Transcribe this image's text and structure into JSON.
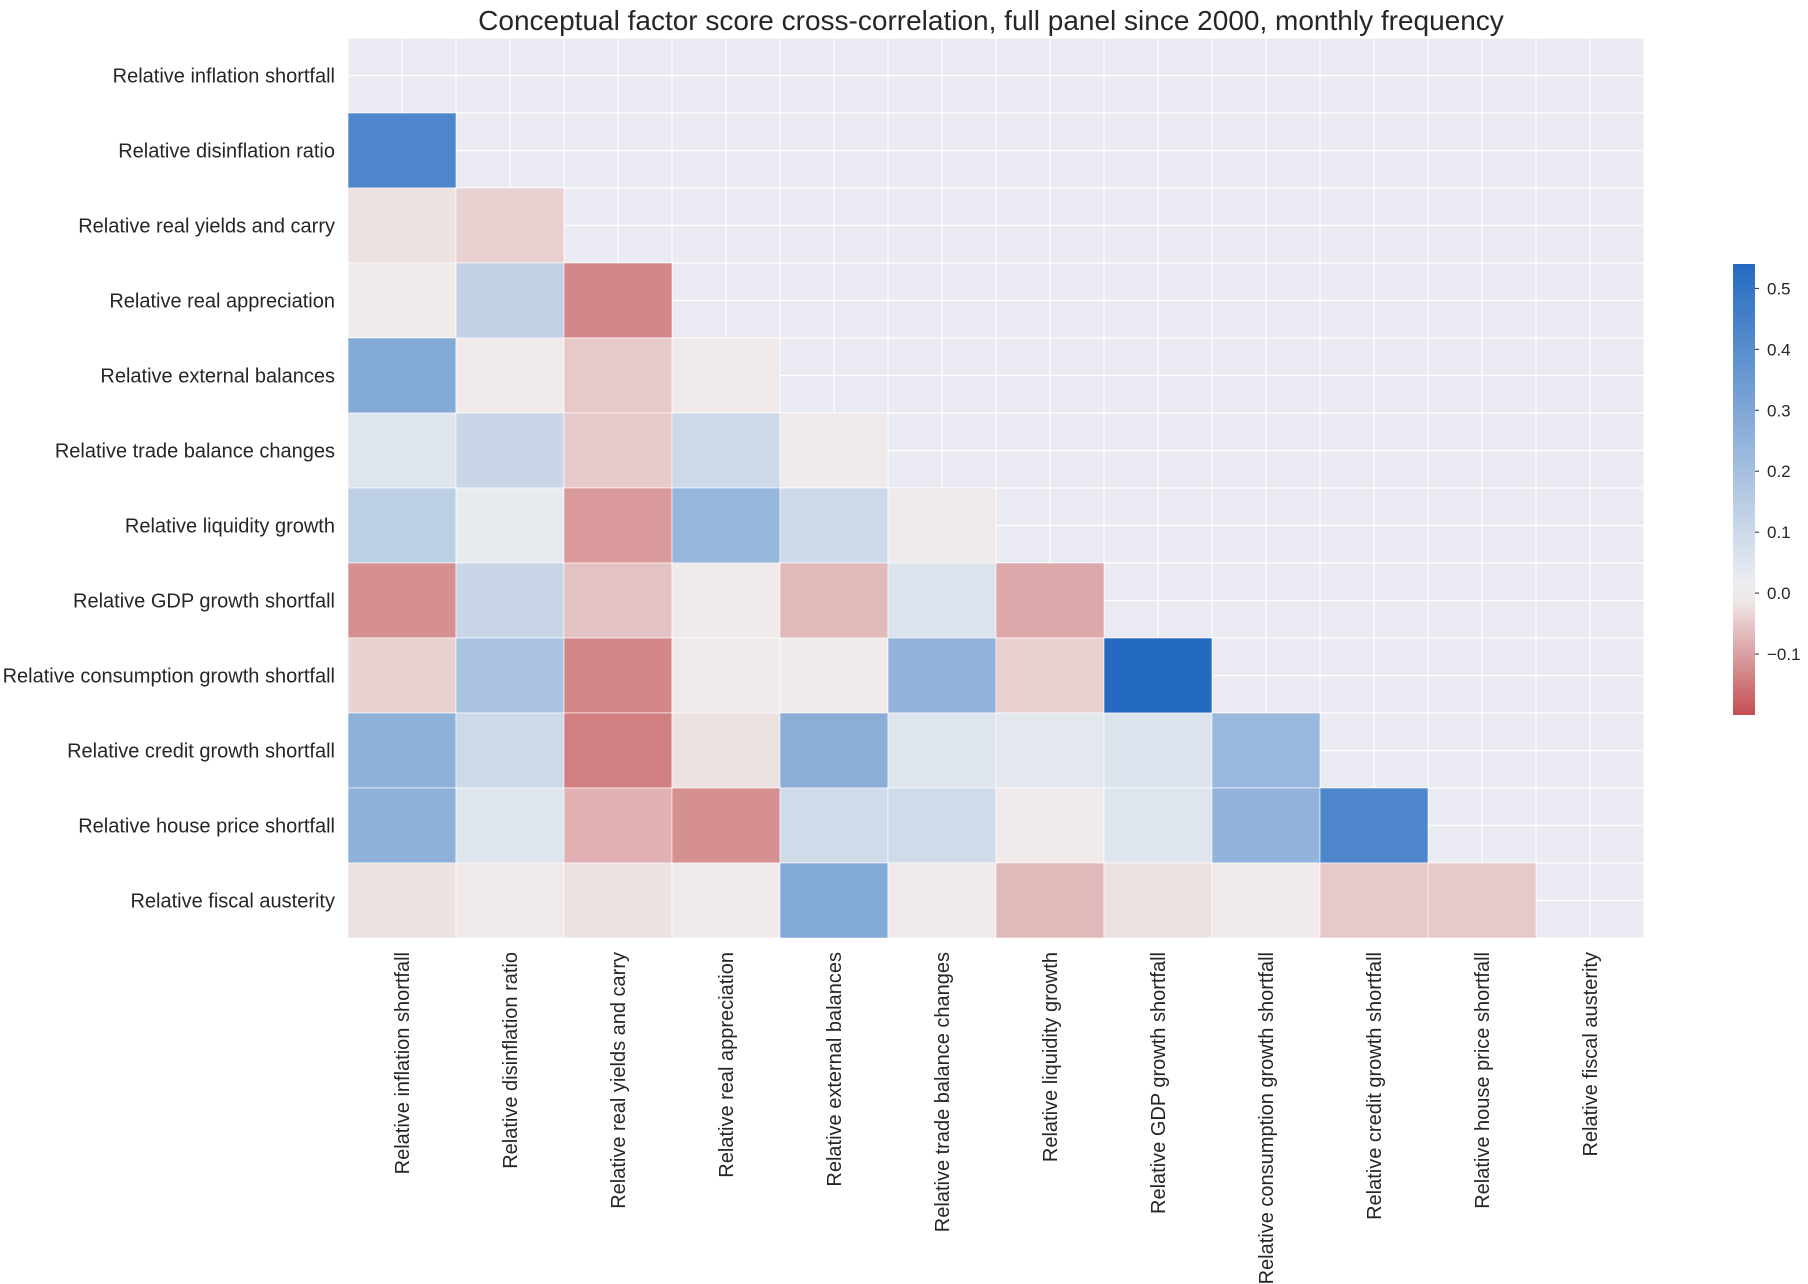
{
  "chart_data": {
    "type": "heatmap",
    "title": "Conceptual factor score cross-correlation, full panel since 2000, monthly frequency",
    "xlabel": "",
    "ylabel": "",
    "mask": "upper triangle including diagonal",
    "grid": true,
    "colormap": {
      "negative": "#c44e52",
      "zero": "#f2f2f2",
      "positive": "#236ac0"
    },
    "colorbar": {
      "range": [
        -0.2,
        0.54
      ],
      "ticks": [
        -0.1,
        0.0,
        0.1,
        0.2,
        0.3,
        0.4,
        0.5
      ],
      "tick_labels": [
        "−0.1",
        "0.0",
        "0.1",
        "0.2",
        "0.3",
        "0.4",
        "0.5"
      ],
      "placement": "right"
    },
    "labels": [
      "Relative inflation shortfall",
      "Relative disinflation ratio",
      "Relative real yields and carry",
      "Relative real appreciation",
      "Relative external balances",
      "Relative trade balance changes",
      "Relative liquidity growth",
      "Relative GDP growth shortfall",
      "Relative consumption growth shortfall",
      "Relative credit growth shortfall",
      "Relative house price shortfall",
      "Relative fiscal austerity"
    ],
    "lower_triangle": [
      [],
      [
        0.43
      ],
      [
        -0.02,
        -0.04
      ],
      [
        -0.01,
        0.13,
        -0.13
      ],
      [
        0.29,
        -0.01,
        -0.05,
        -0.01
      ],
      [
        0.05,
        0.11,
        -0.05,
        0.1,
        -0.01
      ],
      [
        0.14,
        0.03,
        -0.11,
        0.24,
        0.1,
        -0.01
      ],
      [
        -0.12,
        0.11,
        -0.06,
        -0.01,
        -0.07,
        0.06,
        -0.09
      ],
      [
        -0.04,
        0.19,
        -0.13,
        -0.01,
        -0.01,
        0.25,
        -0.04,
        0.54
      ],
      [
        0.26,
        0.1,
        -0.14,
        -0.02,
        0.27,
        0.05,
        0.04,
        0.06,
        0.23
      ],
      [
        0.26,
        0.05,
        -0.08,
        -0.12,
        0.09,
        0.09,
        -0.01,
        0.05,
        0.25,
        0.43
      ],
      [
        -0.02,
        -0.01,
        -0.02,
        -0.01,
        0.29,
        -0.01,
        -0.07,
        -0.02,
        -0.01,
        -0.05,
        -0.05
      ]
    ]
  }
}
